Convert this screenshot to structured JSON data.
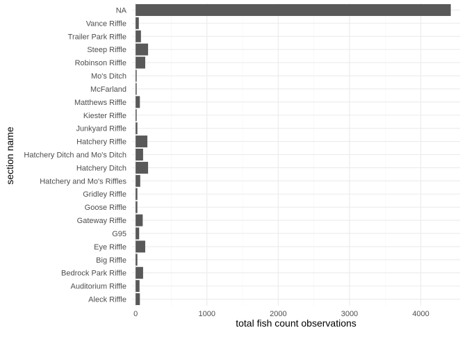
{
  "chart_data": {
    "type": "bar",
    "orientation": "horizontal",
    "title": "",
    "xlabel": "total fish count observations",
    "ylabel": "section name",
    "xlim": [
      -50,
      4550
    ],
    "x_ticks": [
      0,
      1000,
      2000,
      3000,
      4000
    ],
    "grid": true,
    "categories": [
      "Aleck Riffle",
      "Auditorium Riffle",
      "Bedrock Park Riffle",
      "Big Riffle",
      "Eye Riffle",
      "G95",
      "Gateway Riffle",
      "Goose Riffle",
      "Gridley Riffle",
      "Hatchery and Mo's Riffles",
      "Hatchery Ditch",
      "Hatchery Ditch and Mo's Ditch",
      "Hatchery Riffle",
      "Junkyard Riffle",
      "Kiester Riffle",
      "Matthews Riffle",
      "McFarland",
      "Mo's Ditch",
      "Robinson Riffle",
      "Steep Riffle",
      "Trailer Park Riffle",
      "Vance Riffle",
      "NA"
    ],
    "values": [
      60,
      55,
      105,
      25,
      135,
      50,
      100,
      25,
      25,
      65,
      175,
      105,
      165,
      25,
      15,
      60,
      15,
      15,
      135,
      175,
      75,
      45,
      4420
    ],
    "colors": {
      "bar": "#595959",
      "grid_major": "#ebebeb",
      "grid_minor": "#f5f5f5",
      "tick_text": "#4d4d4d",
      "axis_title": "#000000"
    }
  }
}
